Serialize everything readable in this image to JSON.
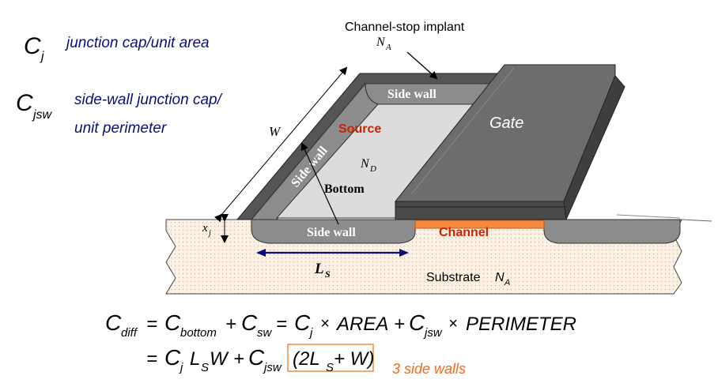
{
  "definitions": {
    "cj_symbol": "C",
    "cj_subscript": "j",
    "cj_description": "junction cap/unit area",
    "cjsw_symbol": "C",
    "cjsw_subscript": "jsw",
    "cjsw_description_line1": "side-wall junction cap/",
    "cjsw_description_line2": "unit perimeter"
  },
  "diagram": {
    "channel_stop_label": "Channel-stop implant",
    "channel_stop_doping": "N",
    "channel_stop_doping_sub": "A",
    "gate_label": "Gate",
    "source_label": "Source",
    "source_doping": "N",
    "source_doping_sub": "D",
    "bottom_label": "Bottom",
    "side_wall_top": "Side wall",
    "side_wall_left": "Side wall",
    "side_wall_front": "Side wall",
    "channel_label": "Channel",
    "substrate_label": "Substrate",
    "substrate_doping": "N",
    "substrate_doping_sub": "A",
    "width_label": "W",
    "depth_label": "x",
    "depth_sub": "j",
    "length_label": "L",
    "length_sub": "S"
  },
  "equation": {
    "line1": {
      "lhs": "C",
      "lhs_sub": "diff",
      "eq": "=",
      "t1": "C",
      "t1_sub": "bottom",
      "plus1": "+",
      "t2": "C",
      "t2_sub": "sw",
      "eq2": "=",
      "t3": "C",
      "t3_sub": "j",
      "times1": "×",
      "area": "AREA",
      "plus2": "+",
      "t4": "C",
      "t4_sub": "jsw",
      "times2": "×",
      "perimeter": "PERIMETER"
    },
    "line2": {
      "eq": "=",
      "t1": "C",
      "t1_sub": "j",
      "ls": "L",
      "ls_sub": "S",
      "w": "W",
      "plus": "+",
      "t2": "C",
      "t2_sub": "jsw",
      "boxed": "(2L",
      "boxed_sub": "S",
      "boxed_rest": "+ W)"
    },
    "note": "3 side walls"
  },
  "colors": {
    "navy": "#0a0f7a",
    "red_label": "#cc2200",
    "orange": "#f28a3c",
    "substrate": "#fbe9dc"
  }
}
